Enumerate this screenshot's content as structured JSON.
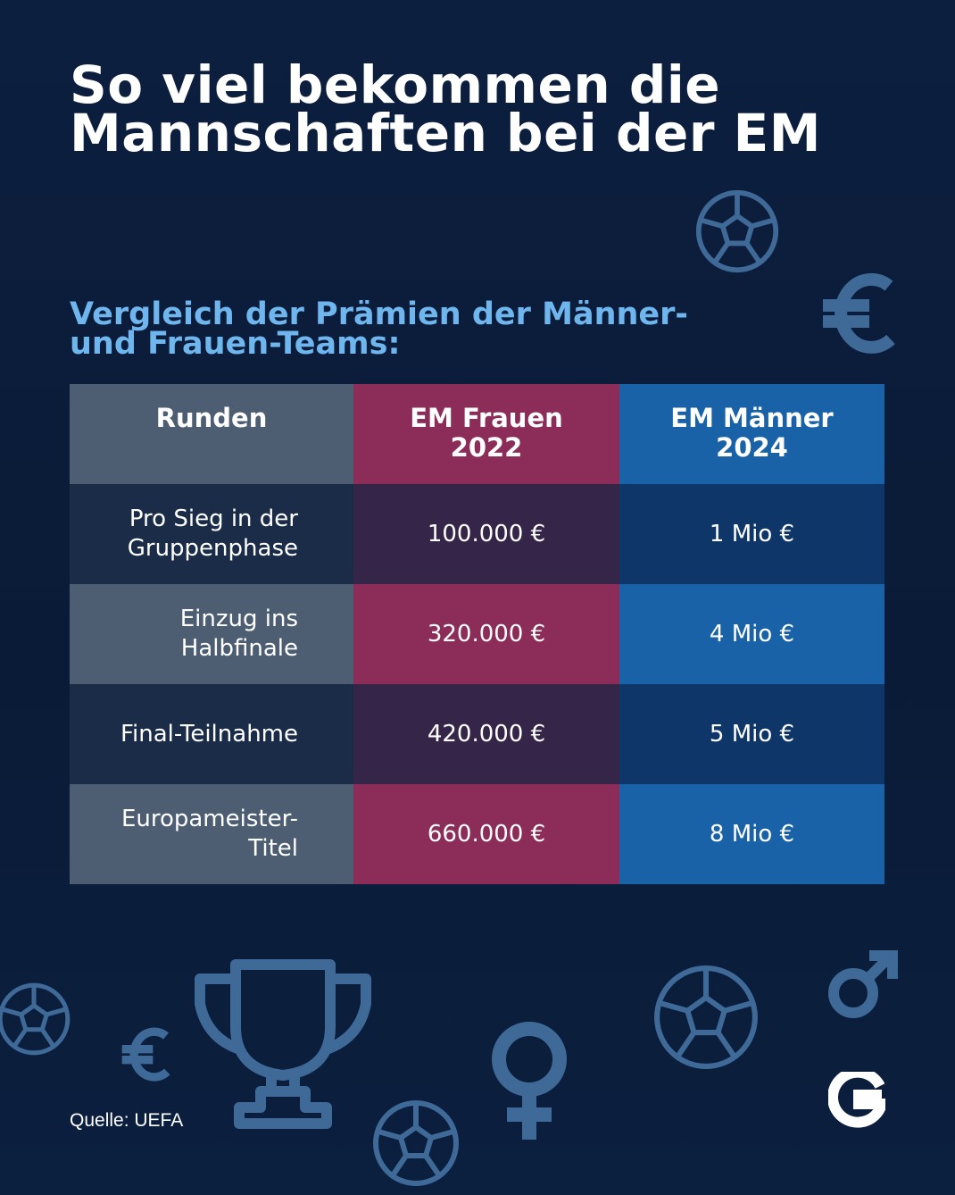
{
  "title": {
    "line1": "So viel bekommen die",
    "line2": "Mannschaften bei der EM"
  },
  "subtitle": {
    "line1": "Vergleich der Prämien der Männer-",
    "line2": "und Frauen-Teams:"
  },
  "table": {
    "headers": [
      "Runden",
      "EM Frauen 2022",
      "EM Männer 2024"
    ],
    "rows": [
      {
        "round": "Pro Sieg in der Gruppenphase",
        "frauen": "100.000 €",
        "maenner": "1 Mio €"
      },
      {
        "round": "Einzug ins Halbfinale",
        "frauen": "320.000 €",
        "maenner": "4 Mio €"
      },
      {
        "round": "Final-Teilnahme",
        "frauen": "420.000 €",
        "maenner": "5 Mio €"
      },
      {
        "round": "Europameister-Titel",
        "frauen": "660.000 €",
        "maenner": "8 Mio €"
      }
    ]
  },
  "source": "Quelle: UEFA",
  "colors": {
    "background": "#0b1d3b",
    "accent_subtitle": "#6fb6ee",
    "frauen": "#8b2c59",
    "maenner": "#1962a8",
    "runden": "#4e5e72",
    "icon": "#3f6a98"
  },
  "icons": [
    "soccer-ball-icon",
    "euro-icon",
    "trophy-icon",
    "venus-icon",
    "mars-icon",
    "logo-g-icon"
  ]
}
